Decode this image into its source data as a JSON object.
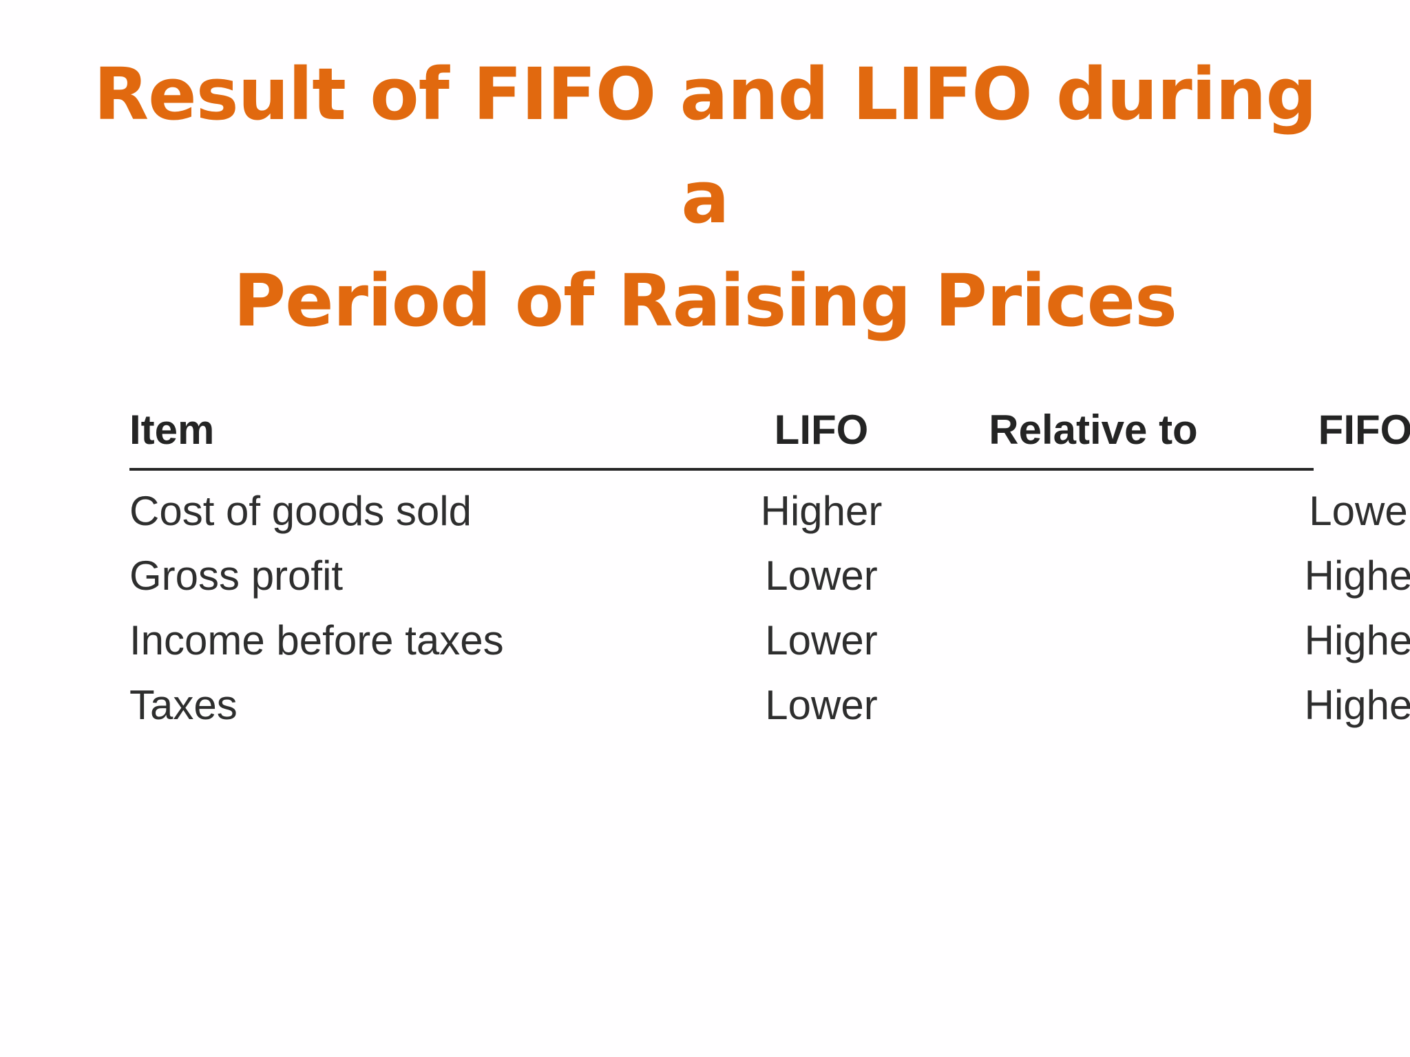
{
  "slide": {
    "title_line1": "Result of FIFO and LIFO during a",
    "title_line2": "Period of Raising Prices",
    "title_color": "#e1690f"
  },
  "table": {
    "headers": {
      "item": "Item",
      "lifo": "LIFO",
      "relative": "Relative to",
      "fifo": "FIFO"
    },
    "rows": [
      {
        "item": "Cost of goods sold",
        "lifo": "Higher",
        "fifo": "Lower"
      },
      {
        "item": "Gross profit",
        "lifo": "Lower",
        "fifo": "Higher"
      },
      {
        "item": "Income before taxes",
        "lifo": "Lower",
        "fifo": "Higher"
      },
      {
        "item": "Taxes",
        "lifo": "Lower",
        "fifo": "Higher"
      }
    ]
  }
}
